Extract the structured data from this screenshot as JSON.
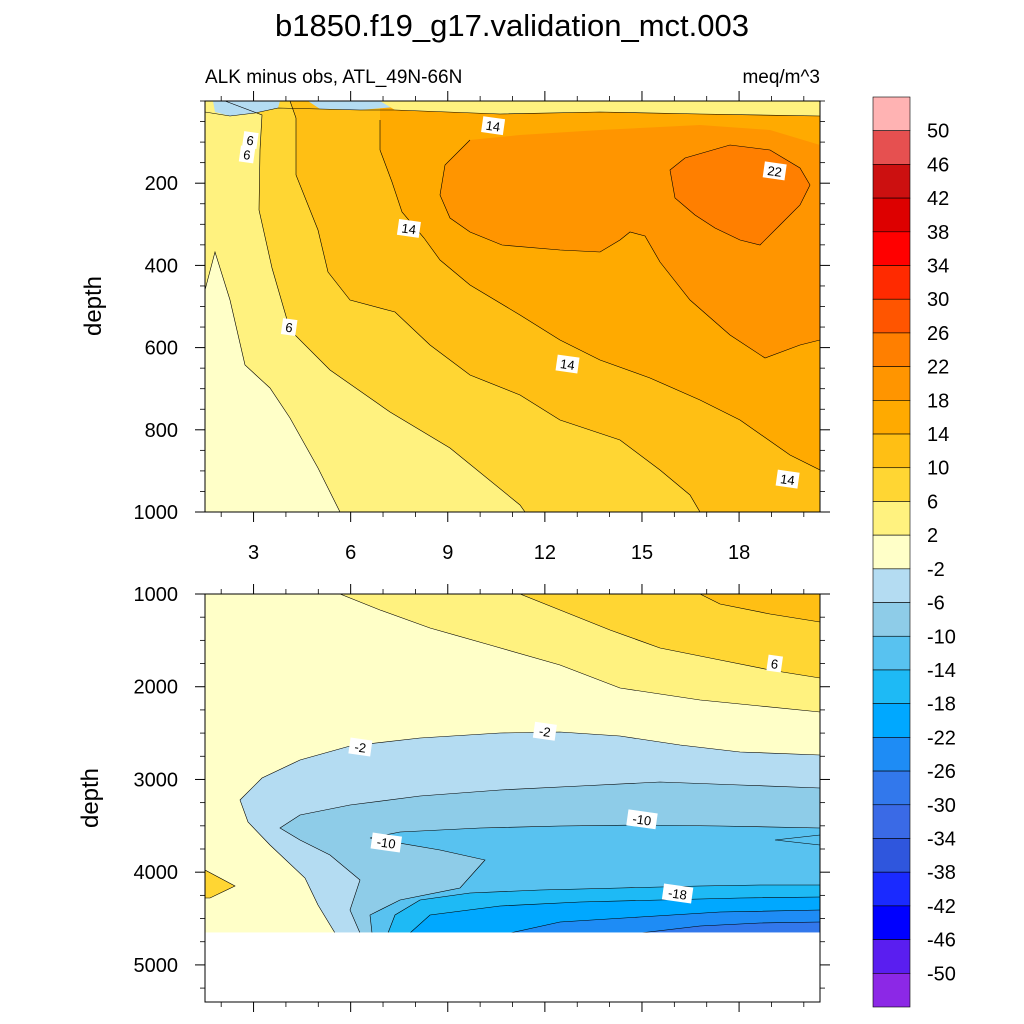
{
  "figure": {
    "title": "b1850.f19_g17.validation_mct.003",
    "subtitle_left": "ALK minus obs, ATL_49N-66N",
    "subtitle_right": "meq/m^3",
    "ylabel": "depth"
  },
  "chart_data": [
    {
      "type": "contour",
      "panel": "upper",
      "x": {
        "range": [
          1.5,
          20.5
        ],
        "ticks": [
          3,
          6,
          9,
          12,
          15,
          18
        ],
        "tick_labels": [
          "3",
          "6",
          "9",
          "12",
          "15",
          "18"
        ]
      },
      "y": {
        "range": [
          0,
          1000
        ],
        "inverted": true,
        "ticks": [
          200,
          400,
          600,
          800,
          1000
        ],
        "tick_labels": [
          "200",
          "400",
          "600",
          "800",
          "1000"
        ],
        "label": "depth"
      },
      "contour_labels": [
        {
          "text": "6",
          "x": 2.9,
          "y": 95
        },
        {
          "text": "6",
          "x": 2.8,
          "y": 130
        },
        {
          "text": "14",
          "x": 10.4,
          "y": 60
        },
        {
          "text": "22",
          "x": 19.1,
          "y": 170
        },
        {
          "text": "14",
          "x": 7.8,
          "y": 310
        },
        {
          "text": "6",
          "x": 4.1,
          "y": 550
        },
        {
          "text": "14",
          "x": 12.7,
          "y": 640
        },
        {
          "text": "14",
          "x": 19.5,
          "y": 920
        }
      ]
    },
    {
      "type": "contour",
      "panel": "lower",
      "x": {
        "range": [
          1.5,
          20.5
        ],
        "ticks": [
          3,
          6,
          9,
          12,
          15,
          18
        ],
        "tick_labels": []
      },
      "y": {
        "range": [
          1000,
          5400
        ],
        "inverted": true,
        "ticks": [
          1000,
          2000,
          3000,
          4000,
          5000
        ],
        "tick_labels": [
          "1000",
          "2000",
          "3000",
          "4000",
          "5000"
        ],
        "label": "depth"
      },
      "bottom_depth_with_data": 4650,
      "contour_labels": [
        {
          "text": "6",
          "x": 19.1,
          "y": 1750
        },
        {
          "text": "-2",
          "x": 6.3,
          "y": 2650
        },
        {
          "text": "-2",
          "x": 12.0,
          "y": 2480
        },
        {
          "text": "-10",
          "x": 15.0,
          "y": 3430
        },
        {
          "text": "-10",
          "x": 7.1,
          "y": 3680
        },
        {
          "text": "-18",
          "x": 16.1,
          "y": 4230
        }
      ]
    }
  ],
  "colorbar": {
    "labels": [
      "50",
      "46",
      "42",
      "38",
      "34",
      "30",
      "26",
      "22",
      "18",
      "14",
      "10",
      "6",
      "2",
      "-2",
      "-6",
      "-10",
      "-14",
      "-18",
      "-22",
      "-26",
      "-30",
      "-34",
      "-38",
      "-42",
      "-46",
      "-50"
    ],
    "colors": [
      "#ffb3b3",
      "#e65050",
      "#cc1010",
      "#dd0000",
      "#ff0000",
      "#ff2a00",
      "#ff5500",
      "#ff7f00",
      "#ff9500",
      "#ffaa00",
      "#ffbf14",
      "#ffd633",
      "#fff27f",
      "#ffffc8",
      "#b4dcf2",
      "#8ecce8",
      "#58c2f0",
      "#1ebaf5",
      "#00a8ff",
      "#1e8cf5",
      "#3278ec",
      "#3a6ae6",
      "#2f56dd",
      "#1a2aff",
      "#0000ff",
      "#5a1ef0",
      "#8c28e6"
    ]
  }
}
